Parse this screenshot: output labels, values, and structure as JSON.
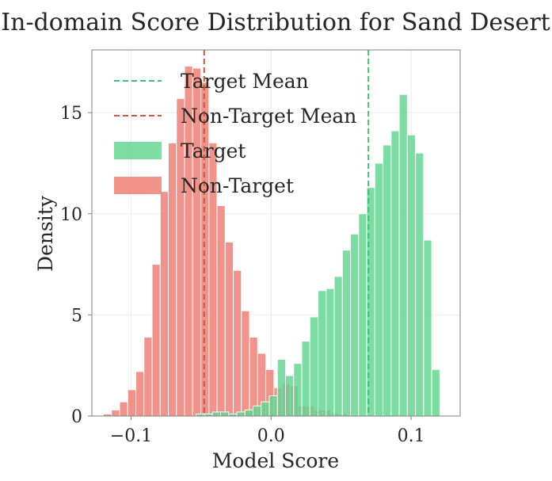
{
  "chart_data": {
    "type": "histogram",
    "title": "In-domain Score Distribution for Sand Desert",
    "xlabel": "Model Score",
    "ylabel": "Density",
    "xlim": [
      -0.128,
      0.135
    ],
    "ylim": [
      0,
      18.1
    ],
    "x_ticks": [
      -0.1,
      0.0,
      0.1
    ],
    "x_tick_labels": [
      "−0.1",
      "0.0",
      "0.1"
    ],
    "y_ticks": [
      0,
      5,
      10,
      15
    ],
    "y_tick_labels": [
      "0",
      "5",
      "10",
      "15"
    ],
    "grid": true,
    "legend_position": "upper-left",
    "colors": {
      "target": "#5fd68f",
      "non_target": "#ee7b70",
      "target_mean": "#3dbd75",
      "non_target_mean": "#c75644"
    },
    "series": [
      {
        "key": "target",
        "name": "Target",
        "kind": "bar",
        "bin_edges": [
          -0.0535,
          -0.0477,
          -0.0419,
          -0.0361,
          -0.0303,
          -0.0245,
          -0.0187,
          -0.0129,
          -0.0071,
          -0.0013,
          0.0045,
          0.0103,
          0.0161,
          0.0219,
          0.0277,
          0.0335,
          0.0393,
          0.0451,
          0.0509,
          0.0567,
          0.0625,
          0.0683,
          0.0741,
          0.0799,
          0.0857,
          0.0915,
          0.0973,
          0.1031,
          0.1089,
          0.1147,
          0.1205
        ],
        "values": [
          0.1,
          0.1,
          0.2,
          0.2,
          0.1,
          0.2,
          0.3,
          0.5,
          0.7,
          1.0,
          2.8,
          2.0,
          2.6,
          3.7,
          4.9,
          6.2,
          6.3,
          6.9,
          8.2,
          9.0,
          10.0,
          11.3,
          12.5,
          13.4,
          14.1,
          15.9,
          13.9,
          13.0,
          8.7,
          2.3,
          0.3
        ],
        "values_note": "one value per bin"
      },
      {
        "key": "non_target",
        "name": "Non-Target",
        "kind": "bar",
        "bin_edges": [
          -0.1198,
          -0.114,
          -0.1082,
          -0.1024,
          -0.0966,
          -0.0908,
          -0.085,
          -0.0792,
          -0.0734,
          -0.0676,
          -0.0618,
          -0.056,
          -0.0502,
          -0.0444,
          -0.0386,
          -0.0328,
          -0.027,
          -0.0212,
          -0.0154,
          -0.0096,
          -0.0038,
          0.002,
          0.0078,
          0.0136,
          0.0194,
          0.0252,
          0.031,
          0.0368,
          0.0426,
          0.0484,
          0.0542,
          0.06
        ],
        "values": [
          0.1,
          0.3,
          0.7,
          1.3,
          2.2,
          3.9,
          7.5,
          11.1,
          13.5,
          15.7,
          17.3,
          17.2,
          16.5,
          13.5,
          10.4,
          8.6,
          7.2,
          5.2,
          3.9,
          3.1,
          2.3,
          1.4,
          1.6,
          1.5,
          0.5,
          0.5,
          0.3,
          0.3,
          0.15,
          0.1,
          0.05
        ],
        "values_note": "one value per bin"
      },
      {
        "key": "target_mean",
        "name": "Target Mean",
        "kind": "vline",
        "x": 0.0695
      },
      {
        "key": "non_target_mean",
        "name": "Non-Target Mean",
        "kind": "vline",
        "x": -0.0478
      }
    ],
    "legend": [
      {
        "key": "target_mean",
        "label": "Target Mean",
        "style": "dashed"
      },
      {
        "key": "non_target_mean",
        "label": "Non-Target Mean",
        "style": "dashed"
      },
      {
        "key": "target",
        "label": "Target",
        "style": "patch"
      },
      {
        "key": "non_target",
        "label": "Non-Target",
        "style": "patch"
      }
    ]
  }
}
